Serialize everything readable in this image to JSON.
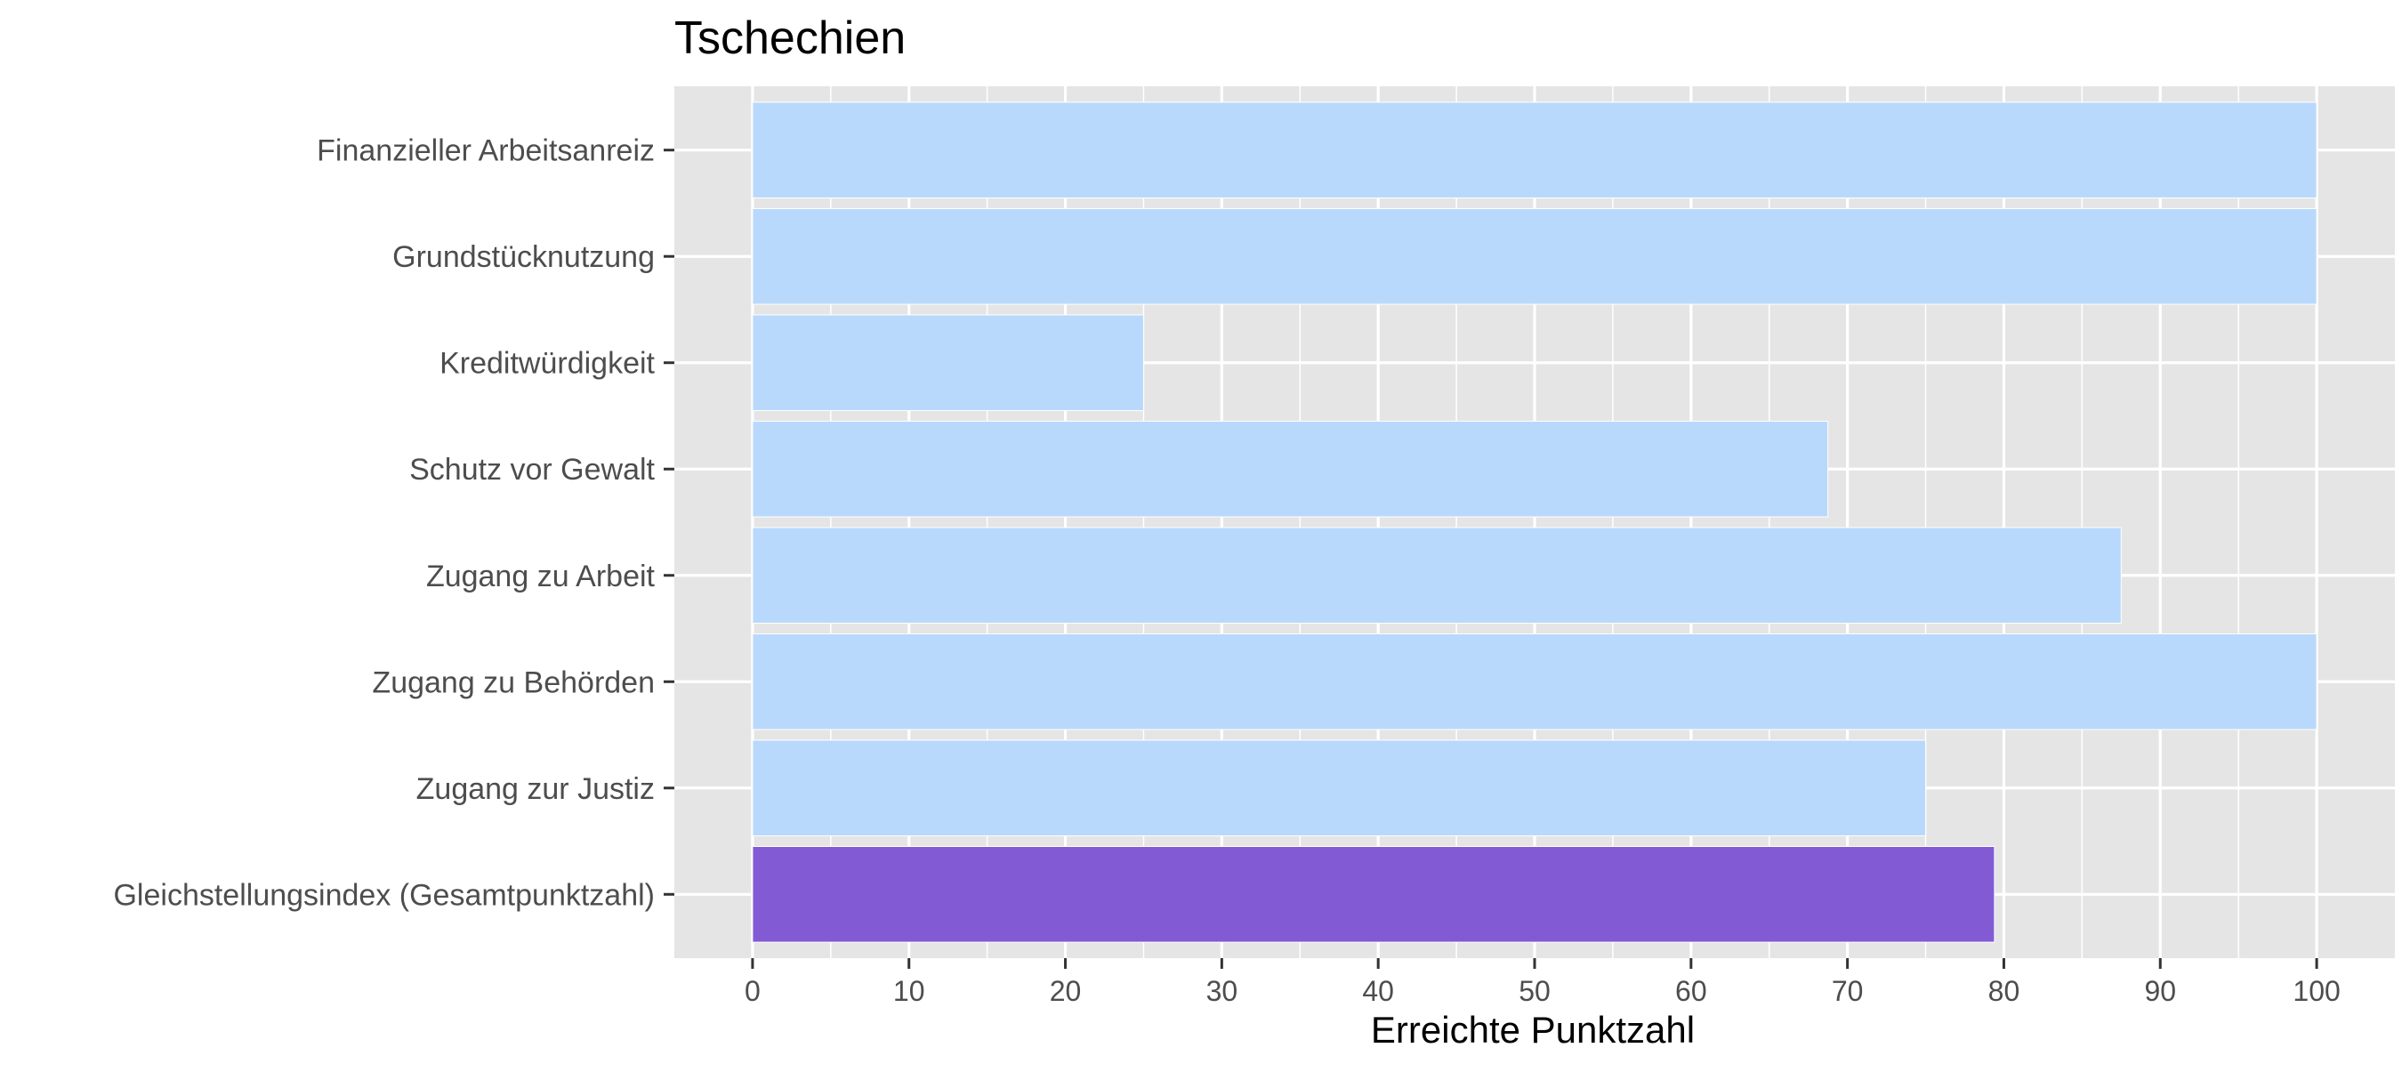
{
  "chart_data": {
    "type": "bar",
    "orientation": "horizontal",
    "title": "Tschechien",
    "xlabel": "Erreichte Punktzahl",
    "ylabel": "",
    "xlim": [
      -5,
      105
    ],
    "x_ticks": [
      0,
      10,
      20,
      30,
      40,
      50,
      60,
      70,
      80,
      90,
      100
    ],
    "grid": true,
    "legend": "none",
    "categories": [
      "Finanzieller Arbeitsanreiz",
      "Grundstücknutzung",
      "Kreditwürdigkeit",
      "Schutz vor Gewalt",
      "Zugang zu Arbeit",
      "Zugang zu Behörden",
      "Zugang zur Justiz",
      "Gleichstellungsindex (Gesamtpunktzahl)"
    ],
    "values": [
      100,
      100,
      25,
      68.75,
      87.5,
      100,
      75,
      79.4
    ],
    "highlight_category": "Gleichstellungsindex (Gesamtpunktzahl)",
    "colors": {
      "bar": "#b9d9fc",
      "highlight_bar": "#825ad4",
      "panel_background": "#e5e5e5",
      "grid": "#ffffff",
      "tick_mark": "#333333"
    }
  }
}
